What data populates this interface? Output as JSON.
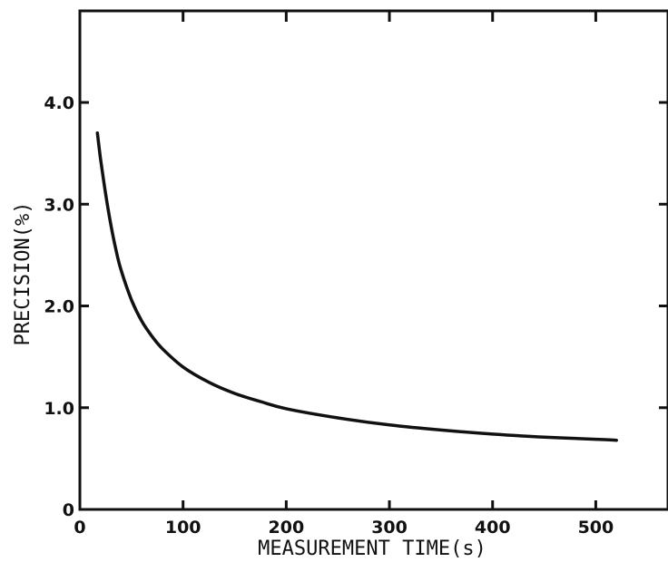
{
  "chart_data": {
    "type": "line",
    "title": "",
    "xlabel": "MEASUREMENT TIME(s)",
    "ylabel": "PRECISION(%)",
    "xlim": [
      0,
      570
    ],
    "ylim": [
      0,
      4.9
    ],
    "x_ticks": [
      0,
      100,
      200,
      300,
      400,
      500
    ],
    "x_tick_labels": [
      "0",
      "100",
      "200",
      "300",
      "400",
      "500"
    ],
    "y_ticks": [
      0,
      1.0,
      2.0,
      3.0,
      4.0
    ],
    "y_tick_labels": [
      "0",
      "1.0",
      "2.0",
      "3.0",
      "4.0"
    ],
    "grid": false,
    "legend": "none",
    "series": [
      {
        "x": [
          17,
          20,
          25,
          30,
          35,
          40,
          50,
          60,
          70,
          80,
          100,
          125,
          150,
          175,
          200,
          250,
          300,
          350,
          400,
          450,
          500,
          520
        ],
        "y": [
          3.7,
          3.45,
          3.1,
          2.8,
          2.55,
          2.35,
          2.06,
          1.85,
          1.7,
          1.58,
          1.4,
          1.25,
          1.14,
          1.06,
          0.99,
          0.9,
          0.83,
          0.78,
          0.74,
          0.71,
          0.69,
          0.68
        ]
      }
    ]
  }
}
